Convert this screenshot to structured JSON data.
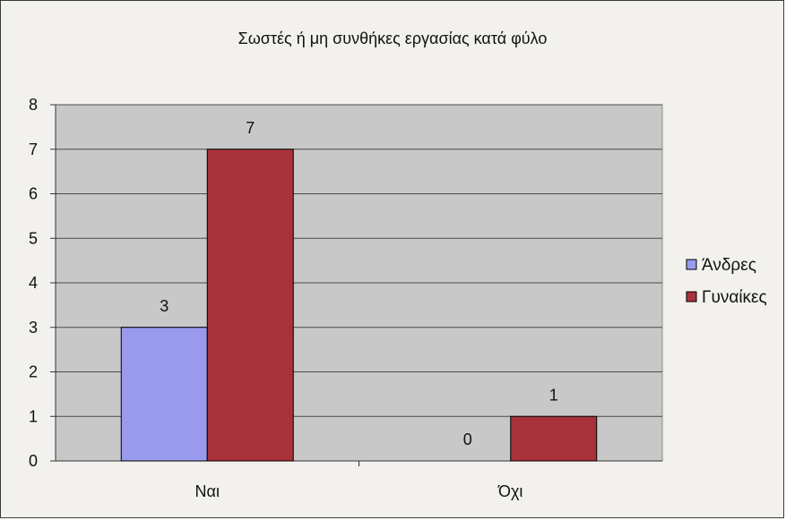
{
  "chart_data": {
    "type": "bar",
    "title": "Σωστές ή μη συνθήκες εργασίας κατά φύλο",
    "categories": [
      "Ναι",
      "Όχι"
    ],
    "series": [
      {
        "name": "Άνδρες",
        "values": [
          3,
          0
        ],
        "color": "#9999ee"
      },
      {
        "name": "Γυναίκες",
        "values": [
          7,
          1
        ],
        "color": "#a8323a"
      }
    ],
    "y_ticks": [
      "0",
      "1",
      "2",
      "3",
      "4",
      "5",
      "6",
      "7",
      "8"
    ],
    "ylim": [
      0,
      8
    ],
    "xlabel": "",
    "ylabel": "",
    "grid": true,
    "legend": "right",
    "plot_background": "#c8c8c8"
  }
}
